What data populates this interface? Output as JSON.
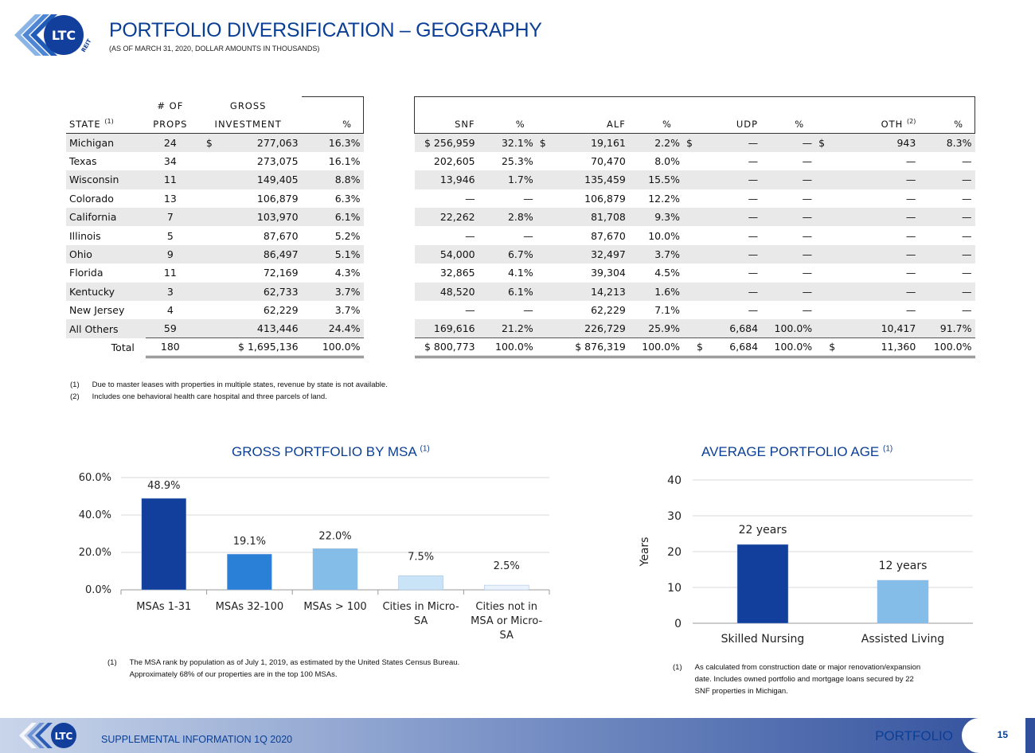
{
  "header": {
    "logo_text": "LTC",
    "logo_sub": "REIT",
    "title": "PORTFOLIO DIVERSIFICATION – GEOGRAPHY",
    "subtitle": "(AS OF MARCH 31, 2020, DOLLAR AMOUNTS IN THOUSANDS)"
  },
  "colors": {
    "brand_blue": "#0b3f96",
    "bar_dark": "#123f9b",
    "bar_mid": "#2a7fd6",
    "bar_light": "#85bde9",
    "bar_pale": "#c9e3f7"
  },
  "left_table": {
    "head1": [
      "",
      "# OF",
      "GROSS",
      ""
    ],
    "head2": [
      "STATE",
      "PROPS",
      "INVESTMENT",
      "%"
    ],
    "state_note": "(1)",
    "rows": [
      [
        "Michigan",
        "24",
        "$",
        "277,063",
        "16.3%"
      ],
      [
        "Texas",
        "34",
        "",
        "273,075",
        "16.1%"
      ],
      [
        "Wisconsin",
        "11",
        "",
        "149,405",
        "8.8%"
      ],
      [
        "Colorado",
        "13",
        "",
        "106,879",
        "6.3%"
      ],
      [
        "California",
        "7",
        "",
        "103,970",
        "6.1%"
      ],
      [
        "Illinois",
        "5",
        "",
        "87,670",
        "5.2%"
      ],
      [
        "Ohio",
        "9",
        "",
        "86,497",
        "5.1%"
      ],
      [
        "Florida",
        "11",
        "",
        "72,169",
        "4.3%"
      ],
      [
        "Kentucky",
        "3",
        "",
        "62,733",
        "3.7%"
      ],
      [
        "New Jersey",
        "4",
        "",
        "62,229",
        "3.7%"
      ],
      [
        "All Others",
        "59",
        "",
        "413,446",
        "24.4%"
      ]
    ],
    "total": [
      "Total",
      "180",
      "$ 1,695,136",
      "100.0%"
    ]
  },
  "right_table": {
    "head": [
      "SNF",
      "%",
      "ALF",
      "%",
      "UDP",
      "%",
      "OTH",
      "%"
    ],
    "oth_note": "(2)",
    "rows": [
      [
        "$ 256,959",
        "32.1%",
        "$",
        "19,161",
        "2.2%",
        "$",
        "—",
        "—",
        "$",
        "943",
        "8.3%"
      ],
      [
        "202,605",
        "25.3%",
        "",
        "70,470",
        "8.0%",
        "",
        "—",
        "—",
        "",
        "—",
        "—"
      ],
      [
        "13,946",
        "1.7%",
        "",
        "135,459",
        "15.5%",
        "",
        "—",
        "—",
        "",
        "—",
        "—"
      ],
      [
        "—",
        "—",
        "",
        "106,879",
        "12.2%",
        "",
        "—",
        "—",
        "",
        "—",
        "—"
      ],
      [
        "22,262",
        "2.8%",
        "",
        "81,708",
        "9.3%",
        "",
        "—",
        "—",
        "",
        "—",
        "—"
      ],
      [
        "—",
        "—",
        "",
        "87,670",
        "10.0%",
        "",
        "—",
        "—",
        "",
        "—",
        "—"
      ],
      [
        "54,000",
        "6.7%",
        "",
        "32,497",
        "3.7%",
        "",
        "—",
        "—",
        "",
        "—",
        "—"
      ],
      [
        "32,865",
        "4.1%",
        "",
        "39,304",
        "4.5%",
        "",
        "—",
        "—",
        "",
        "—",
        "—"
      ],
      [
        "48,520",
        "6.1%",
        "",
        "14,213",
        "1.6%",
        "",
        "—",
        "—",
        "",
        "—",
        "—"
      ],
      [
        "—",
        "—",
        "",
        "62,229",
        "7.1%",
        "",
        "—",
        "—",
        "",
        "—",
        "—"
      ],
      [
        "169,616",
        "21.2%",
        "",
        "226,729",
        "25.9%",
        "",
        "6,684",
        "100.0%",
        "",
        "10,417",
        "91.7%"
      ]
    ],
    "total": [
      "$ 800,773",
      "100.0%",
      "$ 876,319",
      "100.0%",
      "$",
      "6,684",
      "100.0%",
      "$",
      "11,360",
      "100.0%"
    ]
  },
  "table_notes": [
    {
      "n": "(1)",
      "text": "Due to master leases with properties in multiple states, revenue by state is not available."
    },
    {
      "n": "(2)",
      "text": "Includes one behavioral health care hospital and three parcels of land."
    }
  ],
  "chart_data": [
    {
      "type": "bar",
      "title": "GROSS PORTFOLIO BY MSA",
      "title_note": "(1)",
      "categories": [
        "MSAs 1-31",
        "MSAs 32-100",
        "MSAs > 100",
        "Cities in Micro-SA",
        "Cities not in MSA or Micro-SA"
      ],
      "category_lines": [
        [
          "MSAs 1-31"
        ],
        [
          "MSAs 32-100"
        ],
        [
          "MSAs > 100"
        ],
        [
          "Cities in Micro-",
          "SA"
        ],
        [
          "Cities not in",
          "MSA or Micro-",
          "SA"
        ]
      ],
      "values": [
        48.9,
        19.1,
        22.0,
        7.5,
        2.5
      ],
      "value_labels": [
        "48.9%",
        "19.1%",
        "22.0%",
        "7.5%",
        "2.5%"
      ],
      "yticks": [
        "0.0%",
        "20.0%",
        "40.0%",
        "60.0%"
      ],
      "ylim": [
        0,
        60
      ],
      "grid": true
    },
    {
      "type": "bar",
      "title": "AVERAGE PORTFOLIO AGE",
      "title_note": "(1)",
      "categories": [
        "Skilled Nursing",
        "Assisted Living"
      ],
      "values": [
        22,
        12
      ],
      "value_labels": [
        "22 years",
        "12 years"
      ],
      "ylabel": "Years",
      "yticks": [
        "0",
        "10",
        "20",
        "30",
        "40"
      ],
      "ylim": [
        0,
        40
      ],
      "grid": true
    }
  ],
  "chart_notes": {
    "msa": {
      "n": "(1)",
      "lines": [
        "The MSA rank by population as of July 1, 2019, as estimated by the United States Census Bureau.",
        "Approximately 68% of our properties are in the top 100 MSAs."
      ]
    },
    "age": {
      "n": "(1)",
      "lines": [
        "As calculated from construction date or major renovation/expansion",
        "date.  Includes owned portfolio and mortgage loans secured by 22",
        "SNF properties in Michigan."
      ]
    }
  },
  "footer": {
    "left": "SUPPLEMENTAL INFORMATION  1Q 2020",
    "right": "PORTFOLIO",
    "page": "15"
  }
}
